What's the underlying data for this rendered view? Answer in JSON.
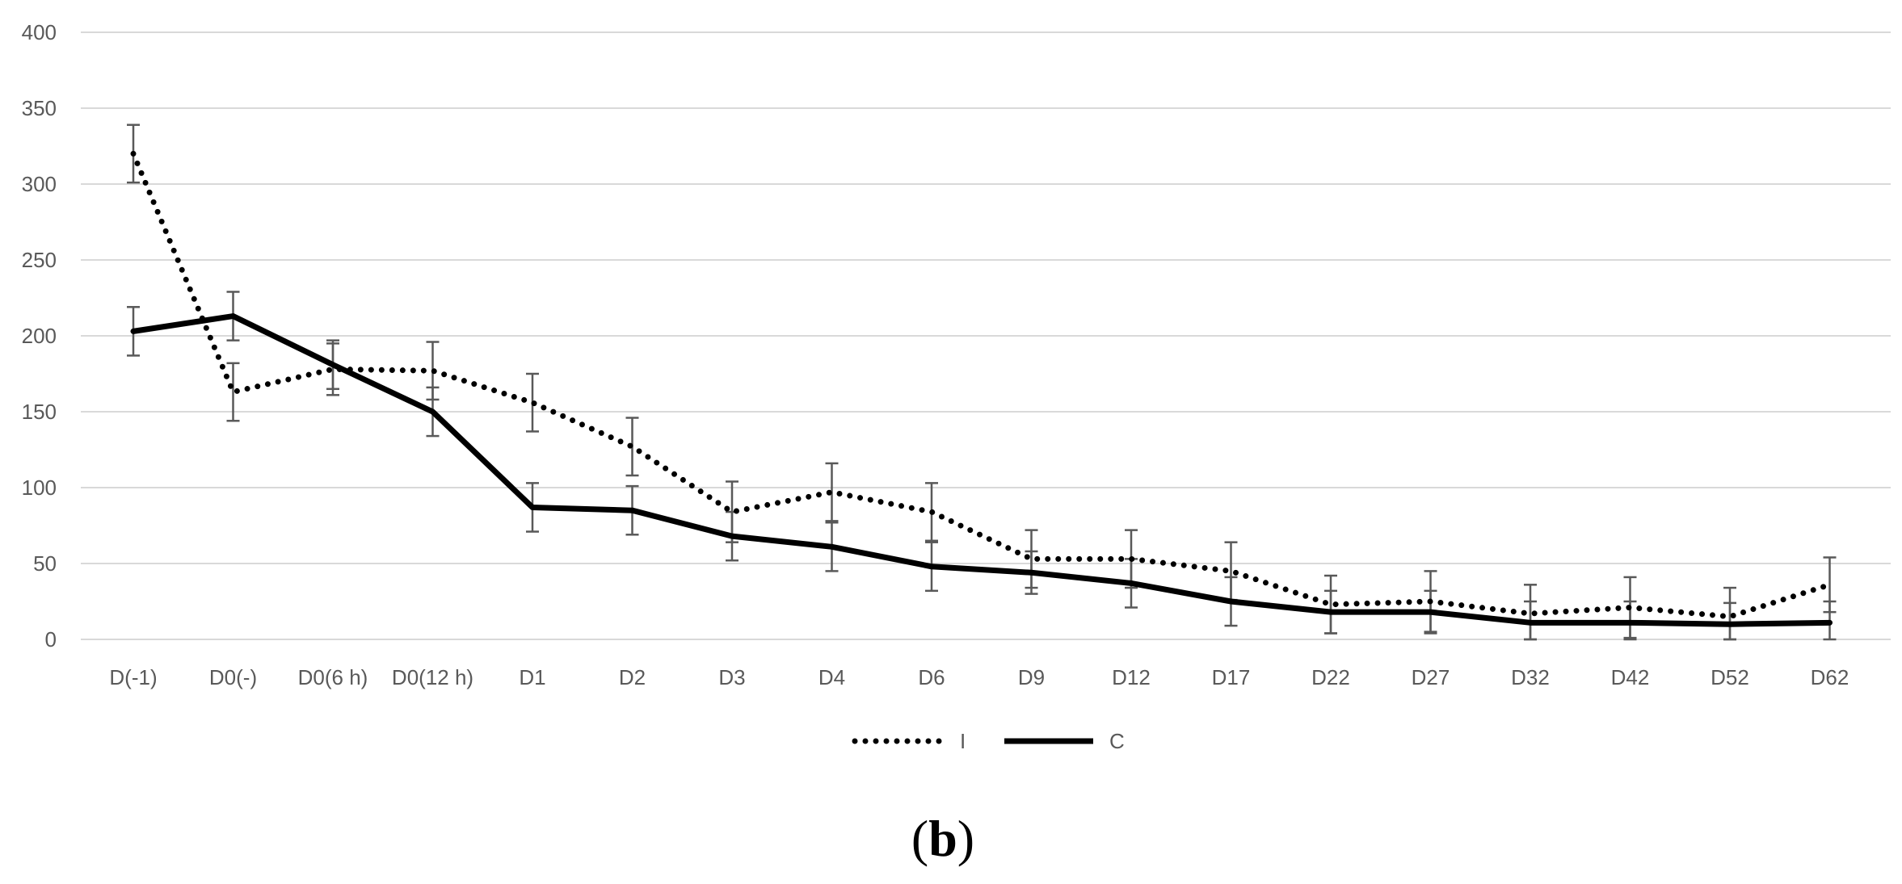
{
  "chart_data": {
    "type": "line",
    "categories": [
      "D(-1)",
      "D0(-)",
      "D0(6 h)",
      "D0(12 h)",
      "D1",
      "D2",
      "D3",
      "D4",
      "D6",
      "D9",
      "D12",
      "D17",
      "D22",
      "D27",
      "D32",
      "D42",
      "D52",
      "D62"
    ],
    "ylim": [
      0,
      400
    ],
    "yticks": [
      0,
      50,
      100,
      150,
      200,
      250,
      300,
      350,
      400
    ],
    "grid": true,
    "legend_position": "bottom",
    "series": [
      {
        "name": "I",
        "style": "dotted",
        "color": "#000000",
        "values": [
          320,
          163,
          178,
          177,
          156,
          127,
          84,
          97,
          84,
          53,
          53,
          45,
          23,
          25,
          17,
          21,
          15,
          36
        ],
        "error": [
          19,
          19,
          17,
          19,
          19,
          19,
          20,
          19,
          19,
          19,
          19,
          19,
          19,
          20,
          19,
          20,
          19,
          18
        ]
      },
      {
        "name": "C",
        "style": "solid",
        "color": "#000000",
        "values": [
          203,
          213,
          181,
          150,
          87,
          85,
          68,
          61,
          48,
          44,
          37,
          25,
          18,
          18,
          11,
          11,
          10,
          11
        ],
        "error": [
          16,
          16,
          16,
          16,
          16,
          16,
          16,
          16,
          16,
          14,
          16,
          16,
          14,
          14,
          14,
          14,
          14,
          14
        ]
      }
    ]
  },
  "panel_label": {
    "open": "(",
    "letter": "b",
    "close": ")"
  }
}
